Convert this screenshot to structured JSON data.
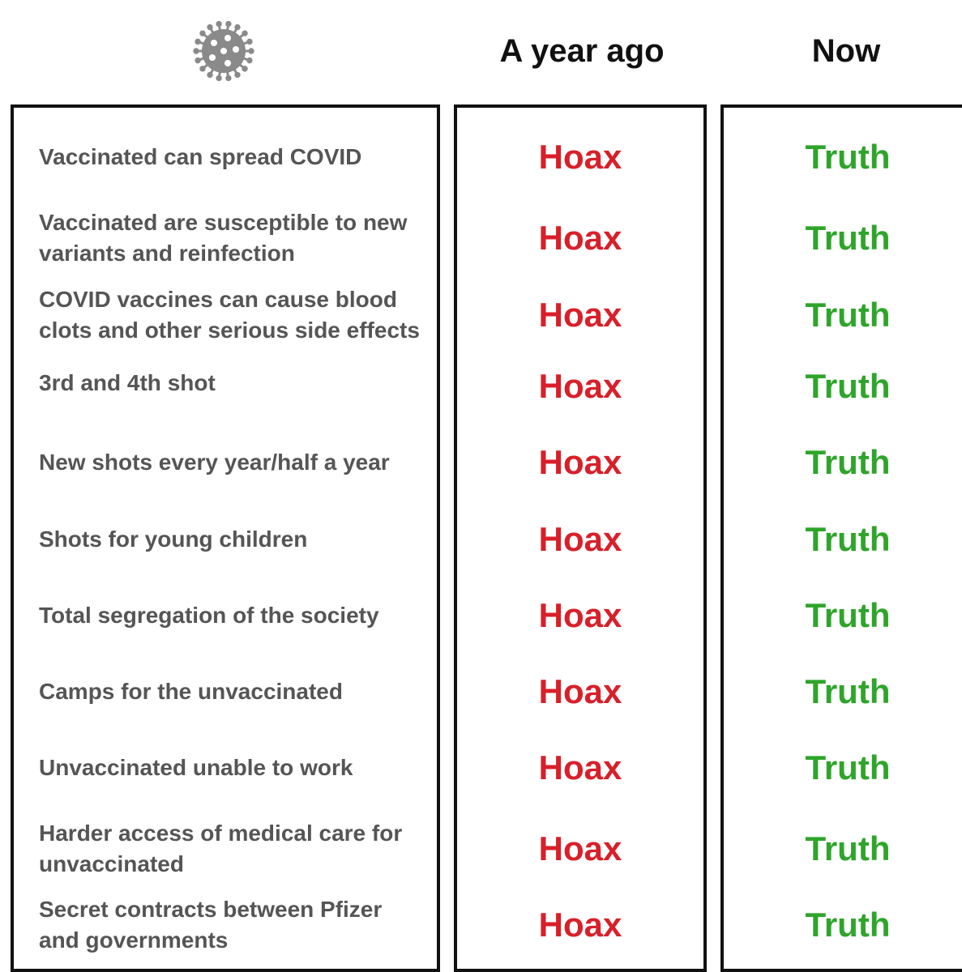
{
  "header": {
    "icon": "coronavirus-icon",
    "col_past": "A year ago",
    "col_now": "Now"
  },
  "colors": {
    "hoax": "#d8202a",
    "truth": "#2ea52a",
    "text": "#555555",
    "border": "#111111"
  },
  "rows": [
    {
      "claim": "Vaccinated can spread COVID",
      "past": "Hoax",
      "now": "Truth"
    },
    {
      "claim": "Vaccinated are susceptible to new variants and reinfection",
      "past": "Hoax",
      "now": "Truth"
    },
    {
      "claim": "COVID vaccines can cause blood clots and other serious side effects",
      "past": "Hoax",
      "now": "Truth"
    },
    {
      "claim": "3rd and 4th shot",
      "past": "Hoax",
      "now": "Truth"
    },
    {
      "claim": "New shots every year/half a year",
      "past": "Hoax",
      "now": "Truth"
    },
    {
      "claim": "Shots for young children",
      "past": "Hoax",
      "now": "Truth"
    },
    {
      "claim": "Total segregation of the society",
      "past": "Hoax",
      "now": "Truth"
    },
    {
      "claim": "Camps for the unvaccinated",
      "past": "Hoax",
      "now": "Truth"
    },
    {
      "claim": "Unvaccinated unable to work",
      "past": "Hoax",
      "now": "Truth"
    },
    {
      "claim": "Harder access of medical care for unvaccinated",
      "past": "Hoax",
      "now": "Truth"
    },
    {
      "claim": "Secret contracts between Pfizer and governments",
      "past": "Hoax",
      "now": "Truth"
    }
  ]
}
